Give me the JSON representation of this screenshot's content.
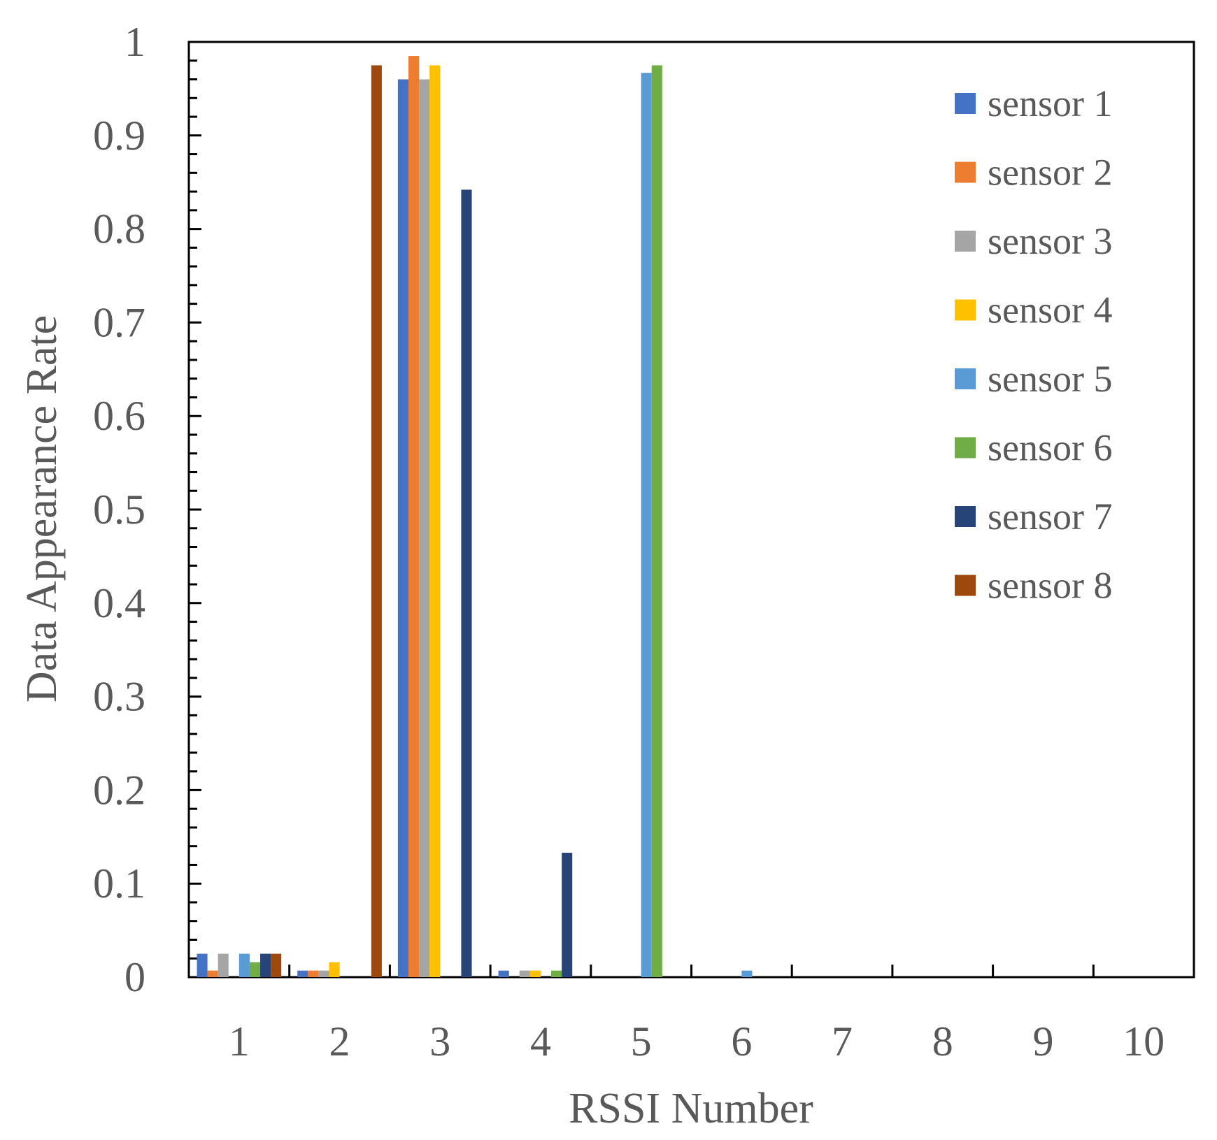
{
  "chart_data": {
    "type": "bar",
    "title": "",
    "xlabel": "RSSI Number",
    "ylabel": "Data Appearance Rate",
    "categories": [
      "1",
      "2",
      "3",
      "4",
      "5",
      "6",
      "7",
      "8",
      "9",
      "10"
    ],
    "ylim": [
      0,
      1
    ],
    "yticks": [
      0,
      0.1,
      0.2,
      0.3,
      0.4,
      0.5,
      0.6,
      0.7,
      0.8,
      0.9,
      1
    ],
    "ytick_labels": [
      "0",
      "0.1",
      "0.2",
      "0.3",
      "0.4",
      "0.5",
      "0.6",
      "0.7",
      "0.8",
      "0.9",
      "1"
    ],
    "grid": false,
    "legend_position": "top-right",
    "series": [
      {
        "name": "sensor 1",
        "color": "#4472C4",
        "values": [
          0.025,
          0.007,
          0.96,
          0.007,
          0,
          0,
          0,
          0,
          0,
          0
        ]
      },
      {
        "name": "sensor 2",
        "color": "#ED7D31",
        "values": [
          0.007,
          0.007,
          0.985,
          0,
          0,
          0,
          0,
          0,
          0,
          0
        ]
      },
      {
        "name": "sensor 3",
        "color": "#A5A5A5",
        "values": [
          0.025,
          0.007,
          0.96,
          0.007,
          0,
          0,
          0,
          0,
          0,
          0
        ]
      },
      {
        "name": "sensor 4",
        "color": "#FFC000",
        "values": [
          0,
          0.016,
          0.975,
          0.007,
          0,
          0,
          0,
          0,
          0,
          0
        ]
      },
      {
        "name": "sensor 5",
        "color": "#5B9BD5",
        "values": [
          0.025,
          0,
          0,
          0,
          0.967,
          0.007,
          0,
          0,
          0,
          0
        ]
      },
      {
        "name": "sensor 6",
        "color": "#70AD47",
        "values": [
          0.016,
          0,
          0,
          0.007,
          0.975,
          0,
          0,
          0,
          0,
          0
        ]
      },
      {
        "name": "sensor 7",
        "color": "#264478",
        "values": [
          0.025,
          0,
          0.842,
          0.133,
          0,
          0,
          0,
          0,
          0,
          0
        ]
      },
      {
        "name": "sensor 8",
        "color": "#9E480E",
        "values": [
          0.025,
          0.975,
          0,
          0,
          0,
          0,
          0,
          0,
          0,
          0
        ]
      }
    ]
  }
}
